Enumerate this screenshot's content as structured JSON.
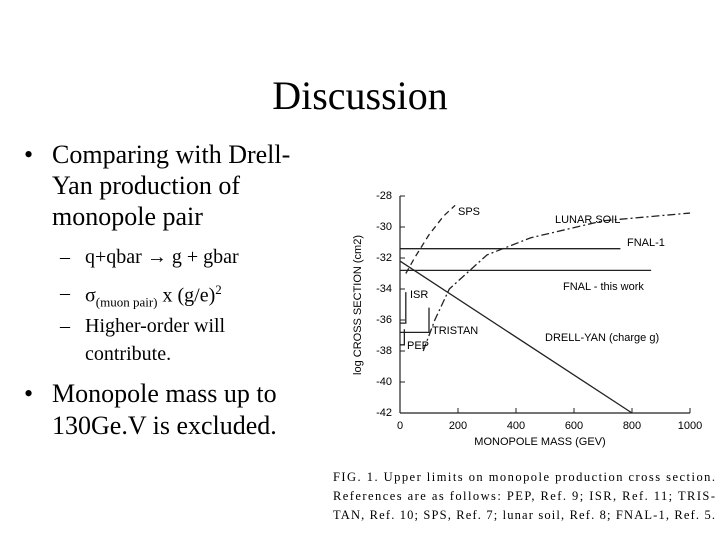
{
  "slide": {
    "title": "Discussion",
    "bullets": [
      {
        "lines": [
          "Comparing with Drell-",
          "Yan production of",
          "monopole pair"
        ],
        "subs": [
          {
            "text": "q+qbar → g + gbar"
          },
          {
            "parts": [
              "σ",
              "(muon pair)",
              " x (g/e)",
              "2"
            ]
          },
          {
            "lines": [
              "Higher-order will",
              "contribute."
            ]
          }
        ]
      },
      {
        "lines": [
          "Monopole mass up to",
          "130Ge.V is excluded."
        ]
      }
    ],
    "caption": [
      "FIG. 1.  Upper limits on monopole production cross section.",
      "References are as follows: PEP, Ref. 9; ISR, Ref. 11; TRIS-",
      "TAN, Ref. 10; SPS, Ref. 7; lunar soil, Ref. 8; FNAL-1, Ref. 5."
    ]
  },
  "chart_data": {
    "type": "line",
    "x_label": "MONOPOLE MASS (GEV)",
    "y_label": "log CROSS SECTION (cm2)",
    "xlim": [
      0,
      1000
    ],
    "xticks": [
      0,
      200,
      400,
      600,
      800,
      1000
    ],
    "ylim": [
      -42,
      -28
    ],
    "yticks": [
      -42,
      -40,
      -38,
      -36,
      -34,
      -32,
      -30,
      -28
    ],
    "color": "#222222",
    "series": [
      {
        "name": "SPS",
        "dash": "dashed",
        "x": [
          20,
          50,
          100,
          150,
          190
        ],
        "values": [
          -33,
          -32,
          -30.5,
          -29.3,
          -28.6
        ]
      },
      {
        "name": "LUNAR SOIL",
        "dash": "dashdot",
        "x": [
          80,
          120,
          170,
          300,
          450,
          700,
          1000
        ],
        "values": [
          -38,
          -36,
          -34,
          -31.8,
          -30.7,
          -29.6,
          -29.1
        ]
      },
      {
        "name": "FNAL-1",
        "dash": "solid",
        "x": [
          0,
          760
        ],
        "values": [
          -31.4,
          -31.4
        ]
      },
      {
        "name": "FNAL - this work",
        "dash": "solid",
        "x": [
          0,
          866
        ],
        "values": [
          -32.8,
          -32.8
        ]
      },
      {
        "name": "ISR",
        "dash": "solid",
        "x": [
          0,
          20,
          20
        ],
        "values": [
          -36.2,
          -36.2,
          -34.2
        ]
      },
      {
        "name": "TRISTAN",
        "dash": "solid",
        "x": [
          0,
          100,
          100
        ],
        "values": [
          -36.8,
          -36.8,
          -35.2
        ]
      },
      {
        "name": "PEP",
        "dash": "solid",
        "x": [
          0,
          15,
          15
        ],
        "values": [
          -37.6,
          -37.6,
          -36.6
        ]
      },
      {
        "name": "DRELL-YAN (charge g)",
        "dash": "solid",
        "x": [
          0,
          800
        ],
        "values": [
          -32.2,
          -42
        ]
      }
    ]
  }
}
